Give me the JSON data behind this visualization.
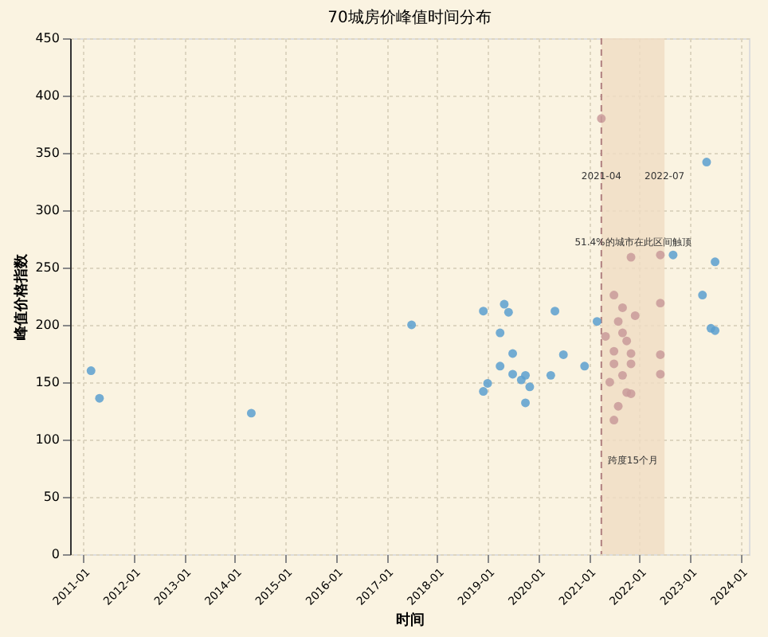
{
  "chart_data": {
    "type": "scatter",
    "title": "70城房价峰值时间分布",
    "xlabel": "时间",
    "ylabel": "峰值价格指数",
    "xlim": [
      "2010-10",
      "2024-03"
    ],
    "xticks": [
      "2011-01",
      "2012-01",
      "2013-01",
      "2014-01",
      "2015-01",
      "2016-01",
      "2017-01",
      "2018-01",
      "2019-01",
      "2020-01",
      "2021-01",
      "2022-01",
      "2023-01",
      "2024-01"
    ],
    "ylim": [
      0,
      450
    ],
    "yticks": [
      0,
      50,
      100,
      150,
      200,
      250,
      300,
      350,
      400,
      450
    ],
    "grid": true,
    "series": [
      {
        "color": "#5a9fcf",
        "x": [
          "2011-03",
          "2011-05",
          "2014-05",
          "2017-07",
          "2018-12",
          "2018-12",
          "2019-01",
          "2019-04",
          "2019-04",
          "2019-05",
          "2019-06",
          "2019-07",
          "2019-07",
          "2019-09",
          "2019-10",
          "2019-11",
          "2019-10",
          "2020-04",
          "2020-05",
          "2020-07",
          "2020-12",
          "2021-03",
          "2022-09",
          "2023-04",
          "2023-05",
          "2023-06",
          "2023-07",
          "2023-07"
        ],
        "values": [
          160,
          136,
          123,
          200,
          212,
          142,
          149,
          164,
          193,
          218,
          211,
          175,
          157,
          152,
          132,
          146,
          156,
          156,
          212,
          174,
          164,
          203,
          261,
          226,
          342,
          197,
          195,
          255
        ]
      },
      {
        "color": "#c99a9a",
        "x": [
          "2021-04",
          "2021-05",
          "2021-06",
          "2021-07",
          "2021-07",
          "2021-07",
          "2021-07",
          "2021-08",
          "2021-08",
          "2021-09",
          "2021-09",
          "2021-09",
          "2021-10",
          "2021-10",
          "2021-11",
          "2021-11",
          "2021-11",
          "2021-11",
          "2021-12",
          "2022-06",
          "2022-06",
          "2022-06",
          "2022-06"
        ],
        "values": [
          380,
          190,
          150,
          166,
          117,
          226,
          177,
          203,
          129,
          215,
          193,
          156,
          186,
          141,
          175,
          259,
          166,
          140,
          208,
          261,
          219,
          174,
          157
        ]
      }
    ],
    "bands": [
      {
        "axis": "x",
        "from": "2021-04",
        "to": "2022-07",
        "color": "#f0dcc3"
      }
    ],
    "ref_lines": [
      {
        "axis": "x",
        "value": "2021-04",
        "color": "#b08080",
        "line_style": "dashed"
      }
    ],
    "annotations": [
      {
        "text": "2021-04",
        "x": "2021-04",
        "y": 330
      },
      {
        "text": "2022-07",
        "x": "2022-07",
        "y": 330
      },
      "51.4%的城市在此区间触顶",
      "跨度15个月"
    ]
  }
}
